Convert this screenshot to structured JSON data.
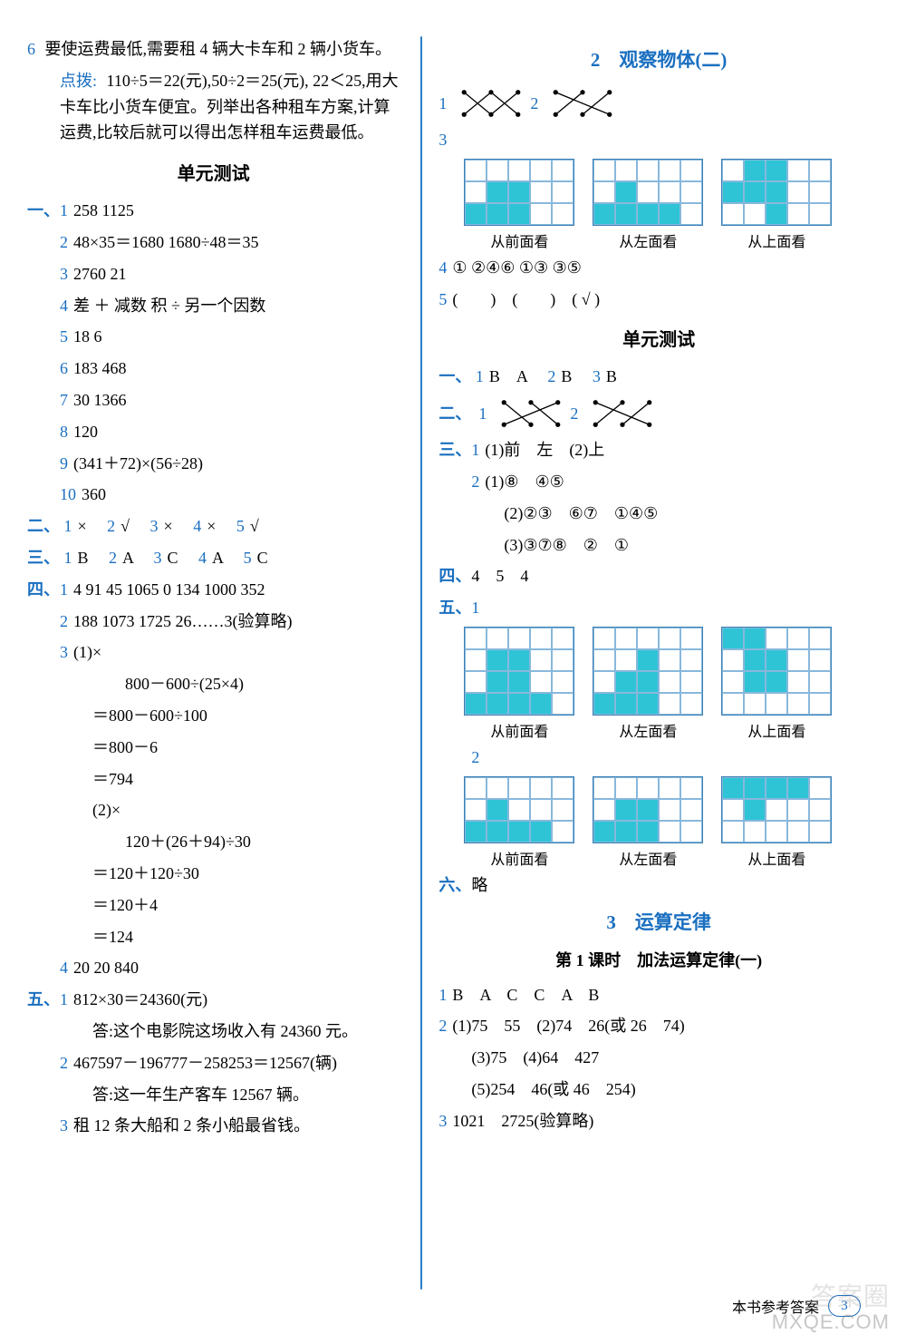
{
  "left": {
    "q6": {
      "num": "6",
      "text": "要使运费最低,需要租 4 辆大卡车和 2 辆小货车。",
      "hint_label": "点拨:",
      "hint": "110÷5＝22(元),50÷2＝25(元), 22＜25,用大卡车比小货车便宜。列举出各种租车方案,计算运费,比较后就可以得出怎样租车运费最低。"
    },
    "unit_test_title": "单元测试",
    "section1": {
      "label": "一、",
      "i1": {
        "n": "1",
        "t": "258   1125"
      },
      "i2": {
        "n": "2",
        "t": "48×35＝1680   1680÷48＝35"
      },
      "i3": {
        "n": "3",
        "t": "2760   21"
      },
      "i4": {
        "n": "4",
        "t": "差   ＋   减数   积   ÷   另一个因数"
      },
      "i5": {
        "n": "5",
        "t": "18   6"
      },
      "i6": {
        "n": "6",
        "t": "183   468"
      },
      "i7": {
        "n": "7",
        "t": "30   1366"
      },
      "i8": {
        "n": "8",
        "t": "120"
      },
      "i9": {
        "n": "9",
        "t": "(341＋72)×(56÷28)"
      },
      "i10": {
        "n": "10",
        "t": "360"
      }
    },
    "section2": {
      "label": "二、",
      "parts": [
        {
          "n": "1",
          "t": "×"
        },
        {
          "n": "2",
          "t": "√"
        },
        {
          "n": "3",
          "t": "×"
        },
        {
          "n": "4",
          "t": "×"
        },
        {
          "n": "5",
          "t": "√"
        }
      ]
    },
    "section3": {
      "label": "三、",
      "parts": [
        {
          "n": "1",
          "t": "B"
        },
        {
          "n": "2",
          "t": "A"
        },
        {
          "n": "3",
          "t": "C"
        },
        {
          "n": "4",
          "t": "A"
        },
        {
          "n": "5",
          "t": "C"
        }
      ]
    },
    "section4": {
      "label": "四、",
      "i1": {
        "n": "1",
        "t": "4   91   45   1065   0   134   1000   352"
      },
      "i2": {
        "n": "2",
        "t": "188   1073   1725   26……3(验算略)"
      },
      "i3": {
        "n": "3",
        "p1_label": "(1)×",
        "p1_lines": [
          "　800－600÷(25×4)",
          "＝800－600÷100",
          "＝800－6",
          "＝794"
        ],
        "p2_label": "(2)×",
        "p2_lines": [
          "　120＋(26＋94)÷30",
          "＝120＋120÷30",
          "＝120＋4",
          "＝124"
        ]
      },
      "i4": {
        "n": "4",
        "t": "20   20   840"
      }
    },
    "section5": {
      "label": "五、",
      "i1": {
        "n": "1",
        "t": "812×30＝24360(元)",
        "ans": "答:这个电影院这场收入有 24360 元。"
      },
      "i2": {
        "n": "2",
        "t": "467597－196777－258253＝12567(辆)",
        "ans": "答:这一年生产客车 12567 辆。"
      },
      "i3": {
        "n": "3",
        "t": "租 12 条大船和 2 条小船最省钱。"
      }
    }
  },
  "right": {
    "title2": "2　观察物体(二)",
    "q1": {
      "n": "1"
    },
    "q2": {
      "n": "2"
    },
    "q3": {
      "n": "3",
      "captions": [
        "从前面看",
        "从左面看",
        "从上面看"
      ],
      "grid_cols": 5,
      "grid_rows": 3,
      "g1_fill": [
        [
          1,
          1
        ],
        [
          1,
          2
        ],
        [
          2,
          0
        ],
        [
          2,
          1
        ],
        [
          2,
          2
        ]
      ],
      "g2_fill": [
        [
          1,
          1
        ],
        [
          2,
          0
        ],
        [
          2,
          1
        ],
        [
          2,
          2
        ],
        [
          2,
          3
        ]
      ],
      "g3_fill": [
        [
          0,
          1
        ],
        [
          0,
          2
        ],
        [
          1,
          0
        ],
        [
          1,
          1
        ],
        [
          1,
          2
        ],
        [
          2,
          2
        ]
      ]
    },
    "q4": {
      "n": "4",
      "t": "①   ②④⑥   ①③   ③⑤"
    },
    "q5": {
      "n": "5",
      "t": "(　　)　(　　)　( √ )"
    },
    "unit_test_title": "单元测试",
    "s1": {
      "label": "一、",
      "parts": [
        {
          "n": "1",
          "t": "B　A"
        },
        {
          "n": "2",
          "t": "B"
        },
        {
          "n": "3",
          "t": "B"
        }
      ]
    },
    "s2": {
      "label": "二、",
      "n1": "1",
      "n2": "2"
    },
    "s3": {
      "label": "三、",
      "i1": {
        "n": "1",
        "t": "(1)前　左　(2)上"
      },
      "i2": {
        "n": "2",
        "l1": "(1)⑧　④⑤",
        "l2": "(2)②③　⑥⑦　①④⑤",
        "l3": "(3)③⑦⑧　②　①"
      }
    },
    "s4": {
      "label": "四、",
      "t": "4　5　4"
    },
    "s5": {
      "label": "五、",
      "i1": {
        "n": "1",
        "captions": [
          "从前面看",
          "从左面看",
          "从上面看"
        ],
        "grid_cols": 5,
        "grid_rows": 4,
        "g1_fill": [
          [
            1,
            1
          ],
          [
            1,
            2
          ],
          [
            2,
            1
          ],
          [
            2,
            2
          ],
          [
            3,
            0
          ],
          [
            3,
            1
          ],
          [
            3,
            2
          ],
          [
            3,
            3
          ]
        ],
        "g2_fill": [
          [
            1,
            2
          ],
          [
            2,
            1
          ],
          [
            2,
            2
          ],
          [
            3,
            0
          ],
          [
            3,
            1
          ],
          [
            3,
            2
          ]
        ],
        "g3_fill": [
          [
            0,
            0
          ],
          [
            0,
            1
          ],
          [
            1,
            1
          ],
          [
            1,
            2
          ],
          [
            2,
            1
          ],
          [
            2,
            2
          ]
        ]
      },
      "i2": {
        "n": "2",
        "captions": [
          "从前面看",
          "从左面看",
          "从上面看"
        ],
        "grid_cols": 5,
        "grid_rows": 3,
        "g1_fill": [
          [
            1,
            1
          ],
          [
            2,
            0
          ],
          [
            2,
            1
          ],
          [
            2,
            2
          ],
          [
            2,
            3
          ]
        ],
        "g2_fill": [
          [
            1,
            1
          ],
          [
            1,
            2
          ],
          [
            2,
            0
          ],
          [
            2,
            1
          ],
          [
            2,
            2
          ]
        ],
        "g3_fill": [
          [
            0,
            0
          ],
          [
            0,
            1
          ],
          [
            0,
            2
          ],
          [
            0,
            3
          ],
          [
            1,
            1
          ]
        ]
      }
    },
    "s6": {
      "label": "六、",
      "t": "略"
    },
    "title3": "3　运算定律",
    "lesson1": "第 1 课时　加法运算定律(一)",
    "l1_q1": {
      "n": "1",
      "t": "B　A　C　C　A　B"
    },
    "l1_q2": {
      "n": "2",
      "l1": "(1)75　55　(2)74　26(或 26　74)",
      "l2": "(3)75　(4)64　427",
      "l3": "(5)254　46(或 46　254)"
    },
    "l1_q3": {
      "n": "3",
      "t": "1021　2725(验算略)"
    }
  },
  "footer": {
    "text": "本书参考答案",
    "page": "3"
  },
  "watermark": {
    "cn": "答案圈",
    "en": "MXQE.COM"
  },
  "colors": {
    "blue": "#1a6fc0",
    "red": "#d13a0f",
    "cyan": "#2ec4d6",
    "gridline": "#88b8dc"
  }
}
